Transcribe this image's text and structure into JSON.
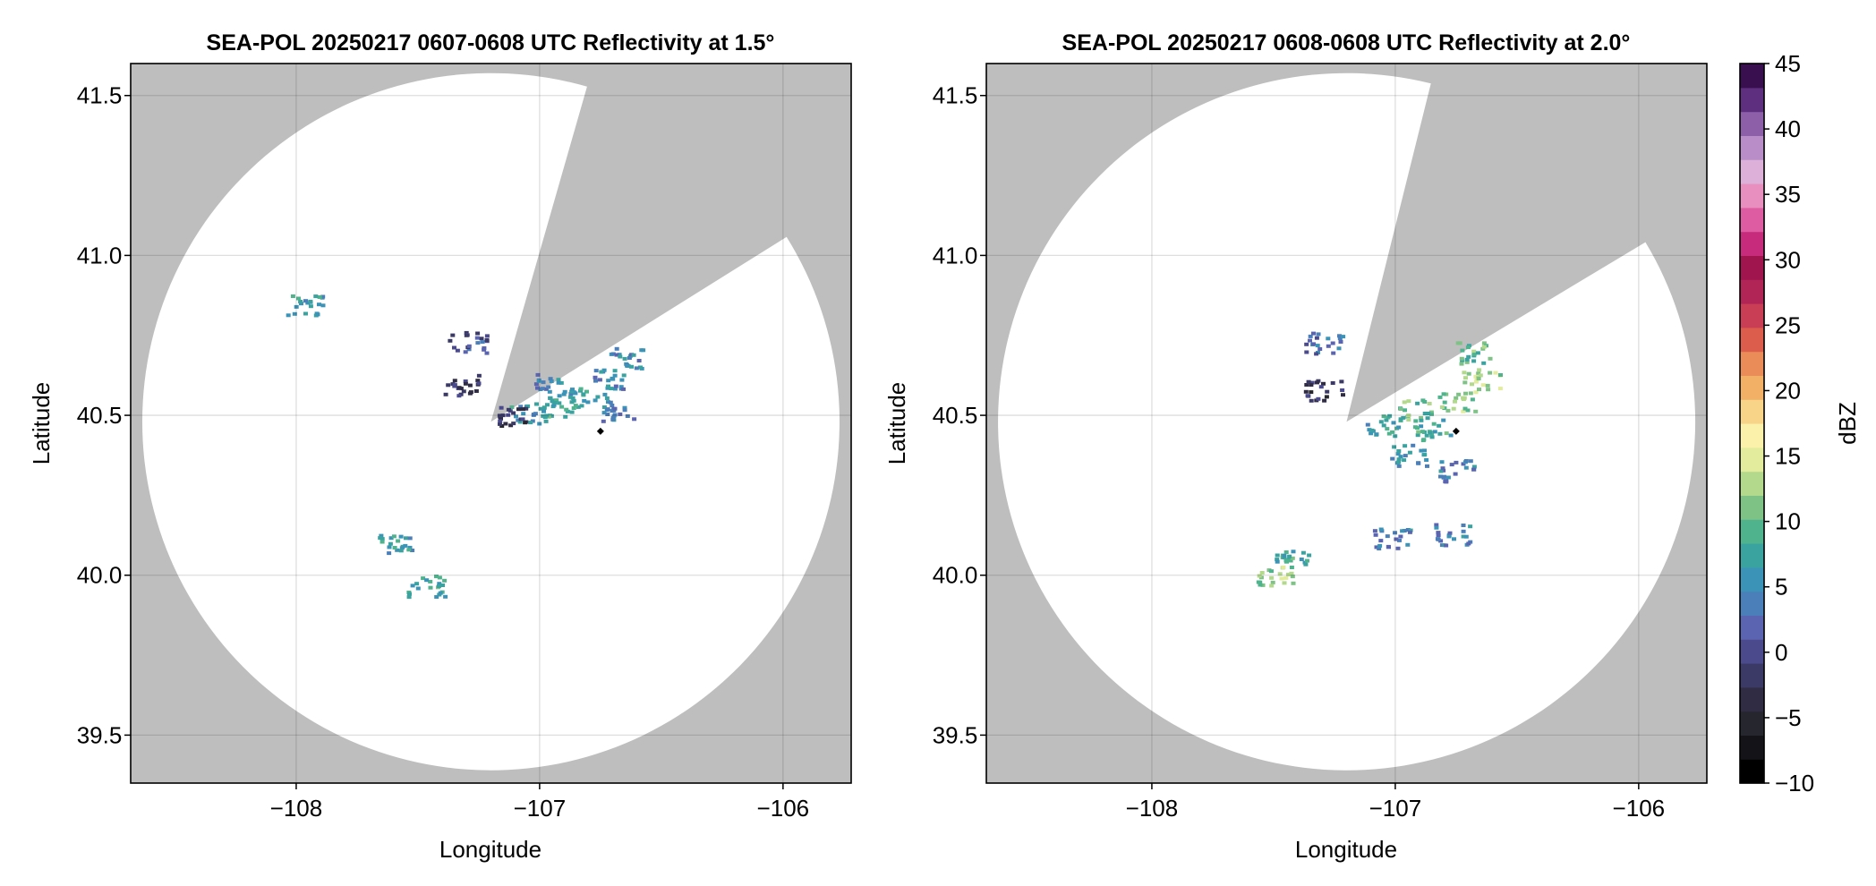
{
  "chart_data": [
    {
      "type": "heatmap",
      "title": "SEA-POL 20250217 0607-0608 UTC Reflectivity at 1.5°",
      "xlabel": "Longitude",
      "ylabel": "Latitude",
      "xlim": [
        -108.68,
        -105.72
      ],
      "ylim": [
        39.35,
        41.6
      ],
      "xticks": [
        -108,
        -107,
        -106
      ],
      "xtick_labels": [
        "−108",
        "−107",
        "−106"
      ],
      "yticks": [
        39.5,
        40.0,
        40.5,
        41.0,
        41.5
      ],
      "ytick_labels": [
        "39.5",
        "40.0",
        "40.5",
        "41.0",
        "41.5"
      ],
      "grid": true,
      "background_color": "#bebebe",
      "radar_site": {
        "lon": -107.2,
        "lat": 40.48
      },
      "coverage_radius_lat": 1.09,
      "blocked_sector_bearings_deg": [
        16,
        58
      ],
      "marker": {
        "lon": -106.75,
        "lat": 40.45
      },
      "echo_cells": [
        {
          "lon": -106.8,
          "lat": 40.56,
          "dbz": 13
        },
        {
          "lon": -106.72,
          "lat": 40.62,
          "dbz": 11
        },
        {
          "lon": -106.66,
          "lat": 40.68,
          "dbz": 10
        },
        {
          "lon": -106.92,
          "lat": 40.53,
          "dbz": 15
        },
        {
          "lon": -107.05,
          "lat": 40.51,
          "dbz": 12
        },
        {
          "lon": -106.95,
          "lat": 40.6,
          "dbz": 9
        },
        {
          "lon": -106.68,
          "lat": 40.52,
          "dbz": 9
        },
        {
          "lon": -107.1,
          "lat": 40.5,
          "dbz": 1
        },
        {
          "lon": -107.3,
          "lat": 40.73,
          "dbz": 4
        },
        {
          "lon": -107.33,
          "lat": 40.6,
          "dbz": 1
        },
        {
          "lon": -107.6,
          "lat": 40.1,
          "dbz": 13
        },
        {
          "lon": -107.47,
          "lat": 39.97,
          "dbz": 14
        },
        {
          "lon": -107.97,
          "lat": 40.85,
          "dbz": 12
        }
      ]
    },
    {
      "type": "heatmap",
      "title": "SEA-POL 20250217 0608-0608 UTC Reflectivity at 2.0°",
      "xlabel": "Longitude",
      "ylabel": "Latitude",
      "xlim": [
        -108.68,
        -105.72
      ],
      "ylim": [
        39.35,
        41.6
      ],
      "xticks": [
        -108,
        -107,
        -106
      ],
      "xtick_labels": [
        "−108",
        "−107",
        "−106"
      ],
      "yticks": [
        39.5,
        40.0,
        40.5,
        41.0,
        41.5
      ],
      "ytick_labels": [
        "39.5",
        "40.0",
        "40.5",
        "41.0",
        "41.5"
      ],
      "grid": true,
      "background_color": "#bebebe",
      "radar_site": {
        "lon": -107.2,
        "lat": 40.48
      },
      "coverage_radius_lat": 1.09,
      "blocked_sector_bearings_deg": [
        14,
        59
      ],
      "marker": {
        "lon": -106.75,
        "lat": 40.45
      },
      "echo_cells": [
        {
          "lon": -106.75,
          "lat": 40.55,
          "dbz": 20
        },
        {
          "lon": -106.65,
          "lat": 40.62,
          "dbz": 21
        },
        {
          "lon": -106.68,
          "lat": 40.7,
          "dbz": 17
        },
        {
          "lon": -106.92,
          "lat": 40.52,
          "dbz": 17
        },
        {
          "lon": -106.85,
          "lat": 40.46,
          "dbz": 15
        },
        {
          "lon": -106.95,
          "lat": 40.38,
          "dbz": 11
        },
        {
          "lon": -106.75,
          "lat": 40.33,
          "dbz": 9
        },
        {
          "lon": -107.05,
          "lat": 40.47,
          "dbz": 13
        },
        {
          "lon": -107.3,
          "lat": 40.73,
          "dbz": 8
        },
        {
          "lon": -107.3,
          "lat": 40.58,
          "dbz": 1
        },
        {
          "lon": -107.5,
          "lat": 40.0,
          "dbz": 20
        },
        {
          "lon": -107.42,
          "lat": 40.05,
          "dbz": 14
        },
        {
          "lon": -107.02,
          "lat": 40.12,
          "dbz": 9
        },
        {
          "lon": -106.77,
          "lat": 40.13,
          "dbz": 10
        }
      ]
    }
  ],
  "colorbar": {
    "label": "dBZ",
    "min": -10,
    "max": 45,
    "step": 2.5,
    "tick_values": [
      -10,
      -5,
      0,
      5,
      10,
      15,
      20,
      25,
      30,
      35,
      40,
      45
    ],
    "tick_labels": [
      "−10",
      "−5",
      "0",
      "5",
      "10",
      "15",
      "20",
      "25",
      "30",
      "35",
      "40",
      "45"
    ],
    "colors": [
      "#000000",
      "#141418",
      "#26262e",
      "#302c44",
      "#3b3a66",
      "#4b4a8c",
      "#5b64b0",
      "#4a7fba",
      "#3b94b7",
      "#3aa3a0",
      "#4fb38e",
      "#7ec286",
      "#b3d98c",
      "#e2ec9c",
      "#fbf1ab",
      "#f7d488",
      "#f1b066",
      "#ea8c58",
      "#dd5d4d",
      "#c93d55",
      "#b12556",
      "#a0154d",
      "#c72c7c",
      "#de5da2",
      "#e98fc0",
      "#dcb0d8",
      "#b98ec8",
      "#8c5fa8",
      "#5e2f7e",
      "#3a0f4f"
    ]
  }
}
